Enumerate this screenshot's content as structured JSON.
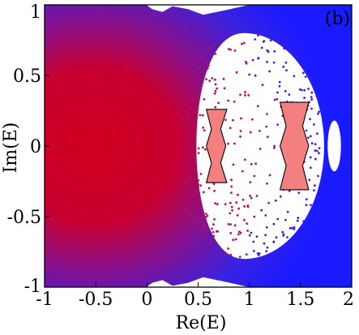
{
  "chart_data": {
    "type": "scatter",
    "panel_label": "(b)",
    "xlabel": "Re(E)",
    "ylabel": "Im(E)",
    "xlim": [
      -1,
      2
    ],
    "ylim": [
      -1,
      1
    ],
    "xticks": [
      -1,
      -0.5,
      0,
      0.5,
      1,
      1.5,
      2
    ],
    "xtick_labels": [
      "-1",
      "-0.5",
      "0",
      "0.5",
      "1",
      "1.5",
      "2"
    ],
    "yticks": [
      1,
      0.5,
      0,
      -0.5,
      -1
    ],
    "ytick_labels": [
      "1",
      "0.5",
      "0",
      "-0.5",
      "-1"
    ],
    "grid": false,
    "legend": "none",
    "colors": {
      "dense_region": "#d0001e",
      "sparse_region": "#1a1aff",
      "island_fill": "#f47f7f",
      "island_edge": "#000000"
    },
    "islands": [
      {
        "outline": [
          [
            0.58,
            0.26
          ],
          [
            0.78,
            0.26
          ],
          [
            0.72,
            0.12
          ],
          [
            0.77,
            0.0
          ],
          [
            0.72,
            -0.12
          ],
          [
            0.78,
            -0.26
          ],
          [
            0.58,
            -0.26
          ],
          [
            0.63,
            -0.12
          ],
          [
            0.58,
            0.0
          ],
          [
            0.63,
            0.12
          ]
        ]
      },
      {
        "outline": [
          [
            1.3,
            0.31
          ],
          [
            1.58,
            0.31
          ],
          [
            1.52,
            0.14
          ],
          [
            1.58,
            0.0
          ],
          [
            1.52,
            -0.14
          ],
          [
            1.58,
            -0.31
          ],
          [
            1.3,
            -0.31
          ],
          [
            1.36,
            -0.14
          ],
          [
            1.3,
            0.0
          ],
          [
            1.36,
            0.14
          ]
        ]
      }
    ]
  }
}
